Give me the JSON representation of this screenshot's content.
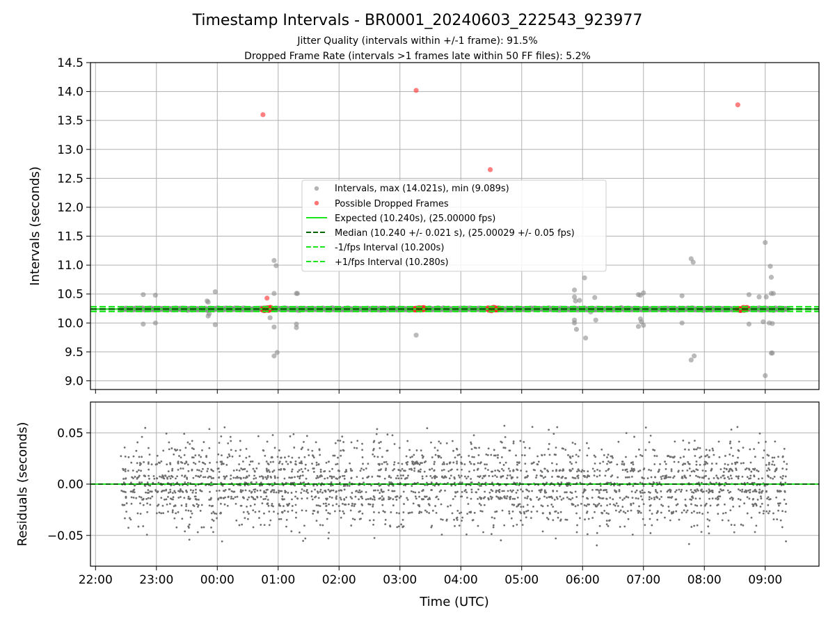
{
  "figure": {
    "title": "Timestamp Intervals - BR0001_20240603_222543_923977",
    "subtitle_1": "Jitter Quality (intervals within +/-1 frame): 91.5%",
    "subtitle_2": "Dropped Frame Rate (intervals >1 frames late within 50 FF files): 5.2%"
  },
  "chart_data": [
    {
      "type": "scatter",
      "panel": "top",
      "xlabel": "",
      "ylabel": "Intervals (seconds)",
      "x_unit": "time_utc",
      "xlim": [
        "21:55",
        "09:53"
      ],
      "ylim": [
        8.85,
        14.5
      ],
      "y_ticks": [
        9.0,
        9.5,
        10.0,
        10.5,
        11.0,
        11.5,
        12.0,
        12.5,
        13.0,
        13.5,
        14.0,
        14.5
      ],
      "y_tick_labels": [
        "9.0",
        "9.5",
        "10.0",
        "10.5",
        "11.0",
        "11.5",
        "12.0",
        "12.5",
        "13.0",
        "13.5",
        "14.0",
        "14.5"
      ],
      "grid": true,
      "legend_position": "center",
      "time_range": [
        "22:25",
        "09:22"
      ],
      "series": [
        {
          "name": "Intervals, max (14.021s), min (9.089s)",
          "kind": "scatter",
          "color": "#8c8c8c",
          "points": [
            {
              "x": "22:47",
              "y": 10.49
            },
            {
              "x": "22:47",
              "y": 9.98
            },
            {
              "x": "22:59",
              "y": 10.48
            },
            {
              "x": "22:59",
              "y": 10.0
            },
            {
              "x": "23:50",
              "y": 10.38
            },
            {
              "x": "23:51",
              "y": 10.36
            },
            {
              "x": "23:51",
              "y": 10.12
            },
            {
              "x": "23:52",
              "y": 10.16
            },
            {
              "x": "23:58",
              "y": 10.54
            },
            {
              "x": "23:58",
              "y": 9.97
            },
            {
              "x": "00:52",
              "y": 10.09
            },
            {
              "x": "00:56",
              "y": 11.08
            },
            {
              "x": "00:58",
              "y": 10.99
            },
            {
              "x": "00:56",
              "y": 10.51
            },
            {
              "x": "00:56",
              "y": 9.93
            },
            {
              "x": "00:56",
              "y": 9.43
            },
            {
              "x": "00:59",
              "y": 9.49
            },
            {
              "x": "01:18",
              "y": 10.51
            },
            {
              "x": "01:19",
              "y": 10.51
            },
            {
              "x": "01:18",
              "y": 9.98
            },
            {
              "x": "01:18",
              "y": 9.92
            },
            {
              "x": "03:16",
              "y": 9.79
            },
            {
              "x": "05:52",
              "y": 10.57
            },
            {
              "x": "05:52",
              "y": 10.45
            },
            {
              "x": "05:53",
              "y": 10.38
            },
            {
              "x": "05:52",
              "y": 10.05
            },
            {
              "x": "05:52",
              "y": 10.0
            },
            {
              "x": "05:54",
              "y": 9.89
            },
            {
              "x": "05:57",
              "y": 10.39
            },
            {
              "x": "06:02",
              "y": 10.78
            },
            {
              "x": "06:03",
              "y": 9.74
            },
            {
              "x": "06:08",
              "y": 10.19
            },
            {
              "x": "06:12",
              "y": 10.44
            },
            {
              "x": "06:13",
              "y": 10.05
            },
            {
              "x": "06:55",
              "y": 10.49
            },
            {
              "x": "06:57",
              "y": 10.48
            },
            {
              "x": "07:00",
              "y": 10.52
            },
            {
              "x": "06:57",
              "y": 10.07
            },
            {
              "x": "06:58",
              "y": 10.02
            },
            {
              "x": "06:55",
              "y": 9.94
            },
            {
              "x": "07:00",
              "y": 9.96
            },
            {
              "x": "07:38",
              "y": 10.47
            },
            {
              "x": "07:38",
              "y": 10.0
            },
            {
              "x": "07:47",
              "y": 11.11
            },
            {
              "x": "07:49",
              "y": 11.05
            },
            {
              "x": "07:47",
              "y": 9.36
            },
            {
              "x": "07:50",
              "y": 9.43
            },
            {
              "x": "08:44",
              "y": 10.49
            },
            {
              "x": "08:44",
              "y": 9.98
            },
            {
              "x": "08:54",
              "y": 10.45
            },
            {
              "x": "08:58",
              "y": 10.02
            },
            {
              "x": "09:00",
              "y": 11.39
            },
            {
              "x": "09:01",
              "y": 10.45
            },
            {
              "x": "09:00",
              "y": 9.09
            },
            {
              "x": "09:05",
              "y": 10.98
            },
            {
              "x": "09:06",
              "y": 10.79
            },
            {
              "x": "09:06",
              "y": 10.51
            },
            {
              "x": "09:08",
              "y": 10.51
            },
            {
              "x": "09:04",
              "y": 10.0
            },
            {
              "x": "09:07",
              "y": 9.99
            },
            {
              "x": "09:06",
              "y": 9.48
            },
            {
              "x": "09:07",
              "y": 9.48
            }
          ]
        },
        {
          "name": "Possible Dropped Frames",
          "kind": "scatter",
          "color": "#ff2a2a",
          "points": [
            {
              "x": "00:45",
              "y": 13.6
            },
            {
              "x": "00:49",
              "y": 10.43
            },
            {
              "x": "03:16",
              "y": 14.02
            },
            {
              "x": "04:29",
              "y": 12.65
            },
            {
              "x": "08:33",
              "y": 13.77
            }
          ],
          "clusters_near_median": [
            {
              "from": "00:45",
              "to": "00:53"
            },
            {
              "from": "03:15",
              "to": "03:24"
            },
            {
              "from": "04:27",
              "to": "04:37"
            },
            {
              "from": "08:33",
              "to": "08:42"
            }
          ]
        },
        {
          "name": "Expected (10.240s), (25.00000 fps)",
          "kind": "hline",
          "y": 10.24,
          "color": "#19e619",
          "dash": "solid"
        },
        {
          "name": "Median (10.240 +/- 0.021 s), (25.00029 +/- 0.05 fps)",
          "kind": "hline",
          "y": 10.24,
          "color": "#006400",
          "dash": "dashed"
        },
        {
          "name": "-1/fps Interval (10.200s)",
          "kind": "hline",
          "y": 10.2,
          "color": "#19e619",
          "dash": "dashed"
        },
        {
          "name": "+1/fps Interval (10.280s)",
          "kind": "hline",
          "y": 10.28,
          "color": "#19e619",
          "dash": "dashed"
        }
      ]
    },
    {
      "type": "scatter",
      "panel": "bottom",
      "xlabel": "Time (UTC)",
      "ylabel": "Residuals (seconds)",
      "x_unit": "time_utc",
      "xlim": [
        "21:55",
        "09:53"
      ],
      "x_ticks": [
        "22:00",
        "23:00",
        "00:00",
        "01:00",
        "02:00",
        "03:00",
        "04:00",
        "05:00",
        "06:00",
        "07:00",
        "08:00",
        "09:00"
      ],
      "ylim": [
        -0.08,
        0.08
      ],
      "y_ticks": [
        -0.05,
        0.0,
        0.05
      ],
      "y_tick_labels": [
        "−0.05",
        "0.00",
        "0.05"
      ],
      "grid": true,
      "series": [
        {
          "kind": "scatter",
          "color": "#6e6e6e",
          "time_range": [
            "22:25",
            "09:22"
          ],
          "residual_range": [
            -0.06,
            0.058
          ],
          "residual_std": 0.021
        },
        {
          "kind": "hline",
          "y": 0.0,
          "color": "#19e619",
          "dash": "solid"
        },
        {
          "kind": "hline",
          "y": 0.0,
          "color": "#006400",
          "dash": "dashed"
        }
      ]
    }
  ]
}
